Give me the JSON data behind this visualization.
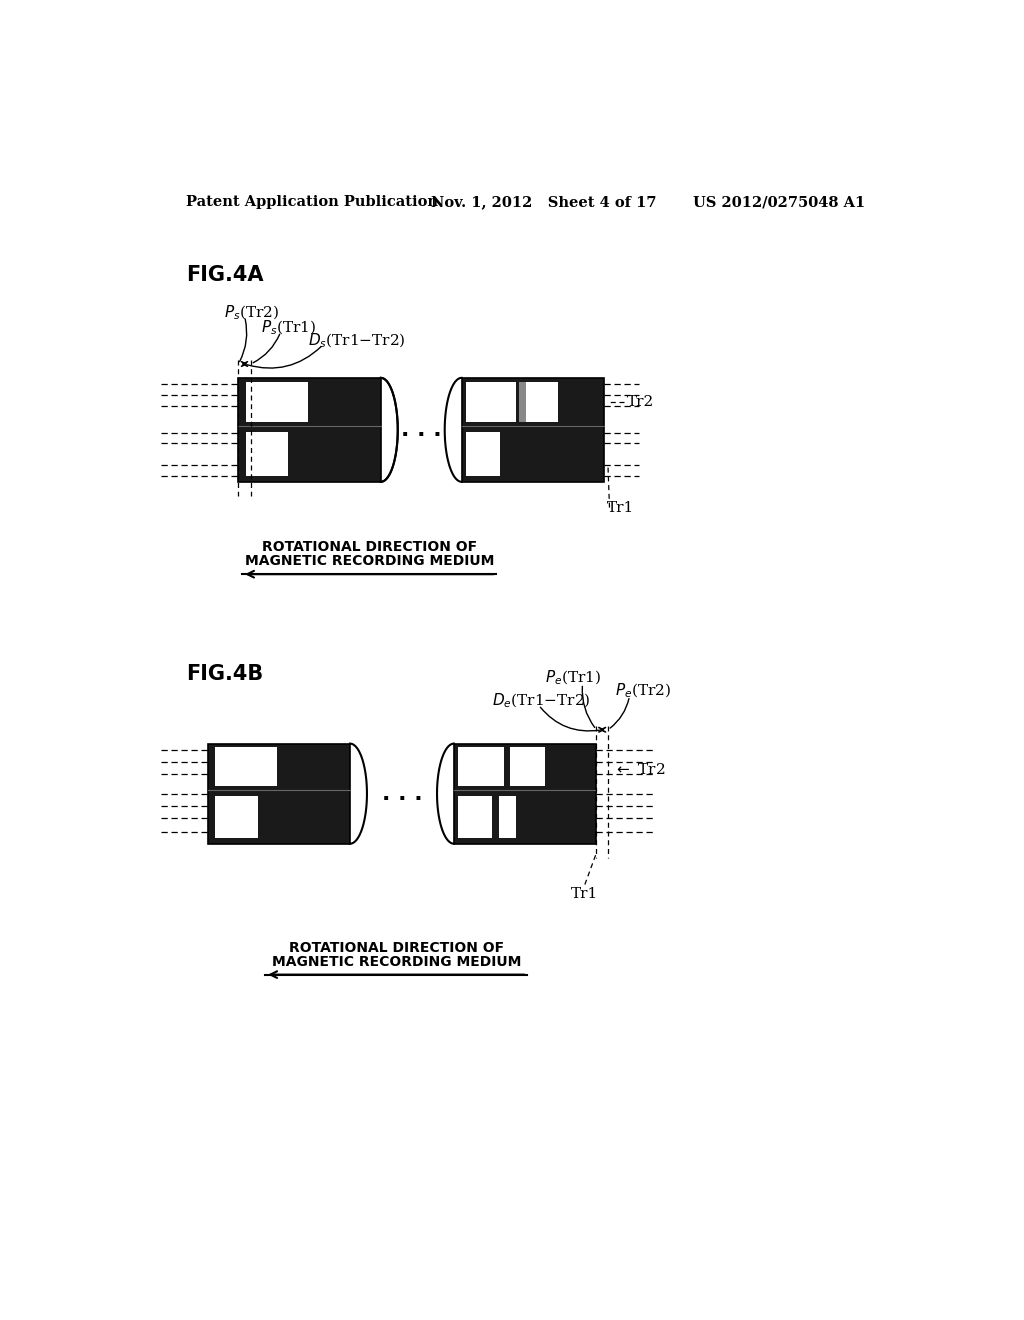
{
  "bg_color": "#ffffff",
  "header_left": "Patent Application Publication",
  "header_mid": "Nov. 1, 2012   Sheet 4 of 17",
  "header_right": "US 2012/0275048 A1",
  "fig4a_label": "FIG.4A",
  "fig4b_label": "FIG.4B",
  "rot_text1": "ROTATIONAL DIRECTION OF",
  "rot_text2": "MAGNETIC RECORDING MEDIUM",
  "block_dark": "#1a1a1a",
  "block_gray": "#888888",
  "block_white": "#ffffff",
  "line_color": "#000000"
}
